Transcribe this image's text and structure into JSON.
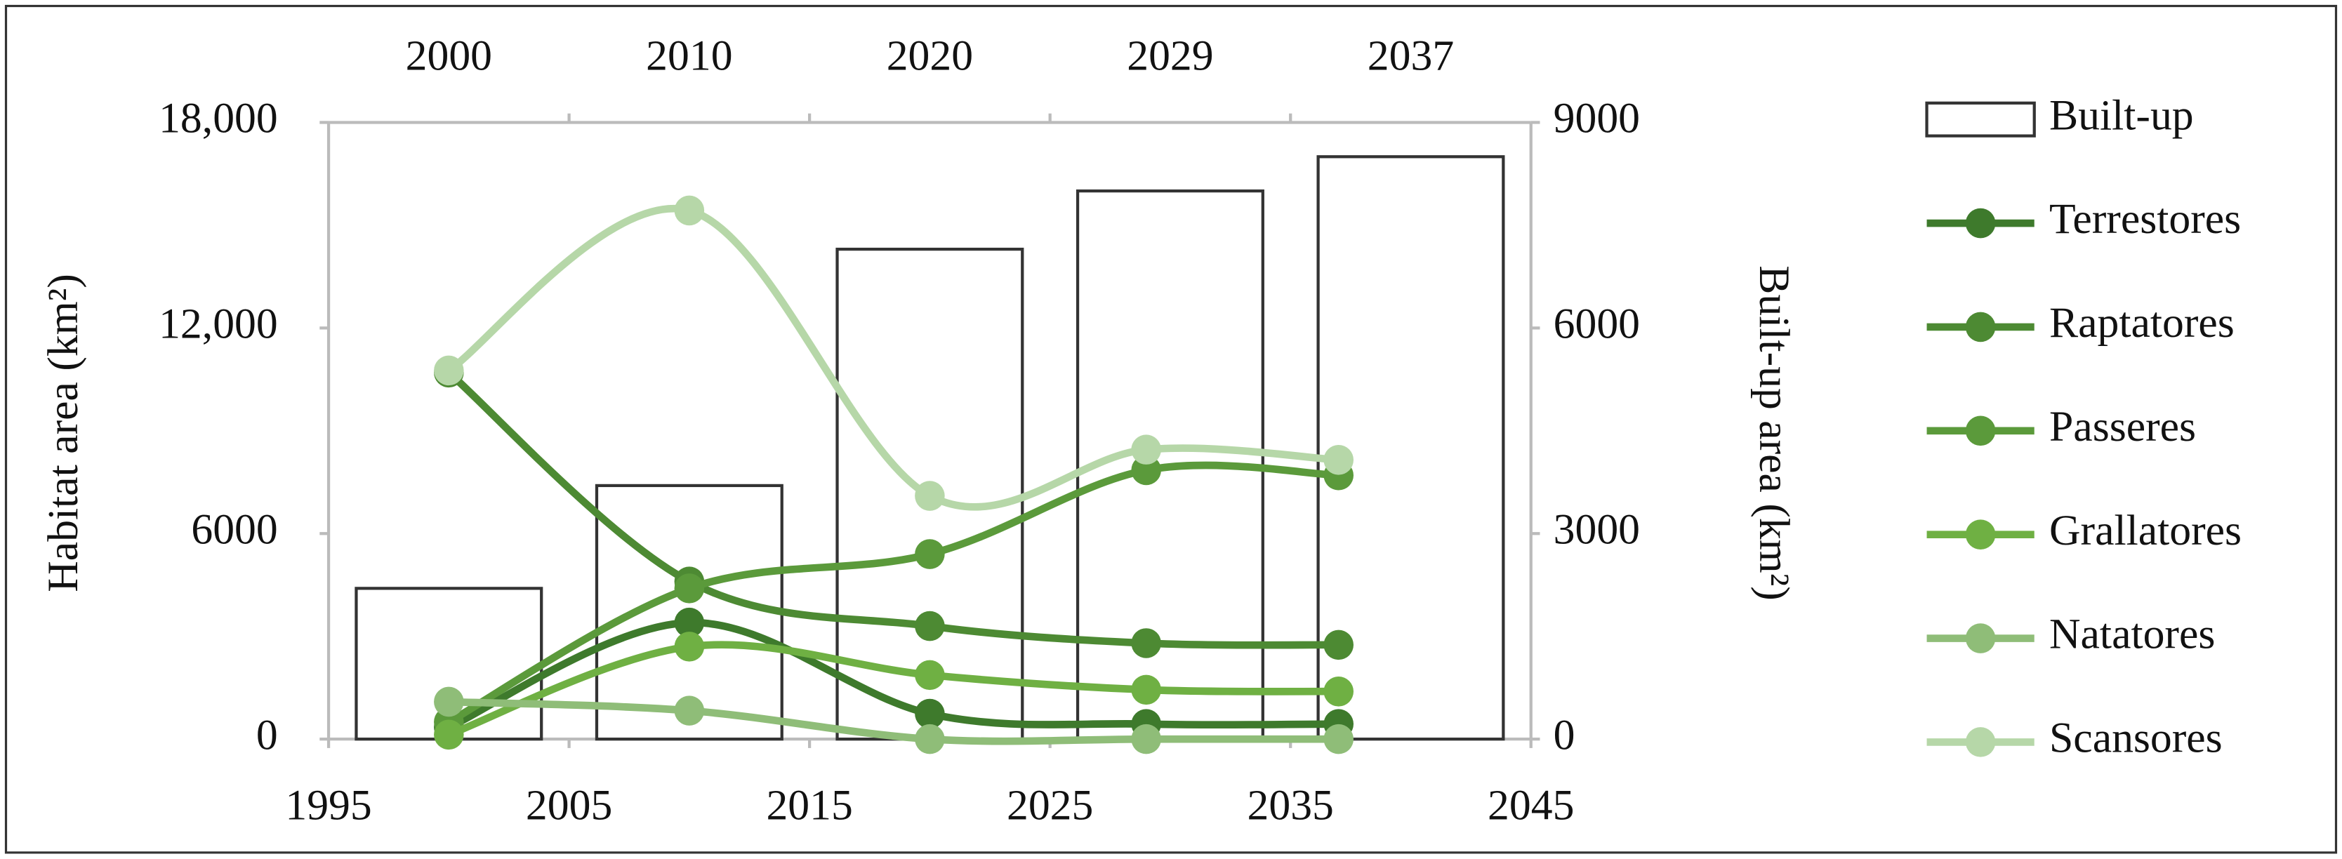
{
  "chart_data": {
    "type": "combo",
    "y_label": "Habitat area (km²)",
    "y2_label": "Built-up area (km²)",
    "categories": [
      "2000",
      "2010",
      "2020",
      "2029",
      "2037"
    ],
    "x": [
      2000,
      2010,
      2020,
      2029,
      2037
    ],
    "xlim": [
      1995,
      2045
    ],
    "xticks": [
      1995,
      2005,
      2015,
      2025,
      2035,
      2045
    ],
    "ylim": [
      0,
      18000
    ],
    "yticks": [
      0,
      6000,
      {
        "value": 12000,
        "label": "12,000"
      },
      {
        "value": 18000,
        "label": "18,000"
      }
    ],
    "y2lim": [
      0,
      9000
    ],
    "y2ticks": [
      0,
      3000,
      6000,
      9000
    ],
    "grid": false,
    "legend": "right",
    "series": [
      {
        "name": "Built-up",
        "type": "bar",
        "axis": "y2",
        "color": "#ffffff",
        "edge_color": "#333333",
        "values": [
          2200,
          3700,
          7150,
          8000,
          8500
        ]
      },
      {
        "name": "Terrestores",
        "type": "line",
        "color": "#3e7a2c",
        "values": [
          350,
          3400,
          740,
          440,
          440
        ]
      },
      {
        "name": "Raptatores",
        "type": "line",
        "color": "#4d8a33",
        "values": [
          10700,
          4600,
          3300,
          2800,
          2750
        ]
      },
      {
        "name": "Passeres",
        "type": "line",
        "color": "#5b9a3b",
        "values": [
          500,
          4400,
          5400,
          7850,
          7700
        ]
      },
      {
        "name": "Grallatores",
        "type": "line",
        "color": "#6fb043",
        "values": [
          130,
          2700,
          1870,
          1440,
          1390
        ]
      },
      {
        "name": "Natatores",
        "type": "line",
        "color": "#8fbd78",
        "values": [
          1090,
          830,
          0,
          0,
          0
        ]
      },
      {
        "name": "Scansores",
        "type": "line",
        "color": "#b6d7a8",
        "values": [
          10760,
          15430,
          7100,
          8450,
          8150
        ]
      }
    ]
  }
}
